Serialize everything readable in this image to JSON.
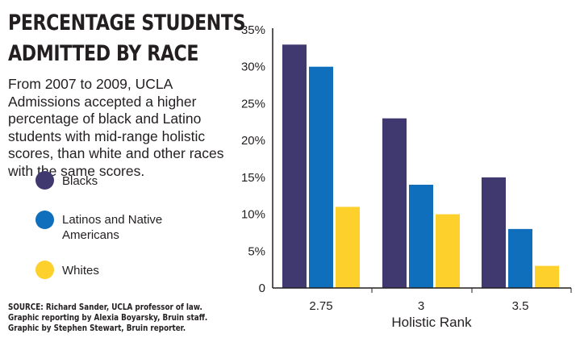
{
  "title_lines": [
    "PERCENTAGE STUDENTS",
    "ADMITTED BY RACE"
  ],
  "description": "From 2007 to 2009, UCLA Admissions accepted a higher percentage of black and Latino students with mid-range holistic scores, than white and other races with the same scores.",
  "credits": [
    "SOURCE: Richard Sander, UCLA professor of law.",
    "Graphic reporting by Alexia Boyarsky, Bruin staff.",
    "Graphic by Stephen Stewart, Bruin reporter."
  ],
  "chart_data": {
    "type": "bar",
    "title": "PERCENTAGE STUDENTS ADMITTED BY RACE",
    "xlabel": "Holistic Rank",
    "ylabel": "",
    "categories": [
      "2.75",
      "3",
      "3.5"
    ],
    "ylim": [
      0,
      35
    ],
    "yticks": [
      0,
      5,
      10,
      15,
      20,
      25,
      30,
      35
    ],
    "ytick_labels": [
      "0",
      "5%",
      "10%",
      "15%",
      "20%",
      "25%",
      "30%",
      "35%"
    ],
    "grid": false,
    "legend_position": "left",
    "series": [
      {
        "name": "Blacks",
        "color": "#3f3970",
        "values": [
          33,
          23,
          15
        ]
      },
      {
        "name": "Latinos and Native Americans",
        "color": "#0f6fbc",
        "values": [
          30,
          14,
          8
        ]
      },
      {
        "name": "Whites",
        "color": "#fdd02b",
        "values": [
          11,
          10,
          3
        ]
      }
    ]
  }
}
